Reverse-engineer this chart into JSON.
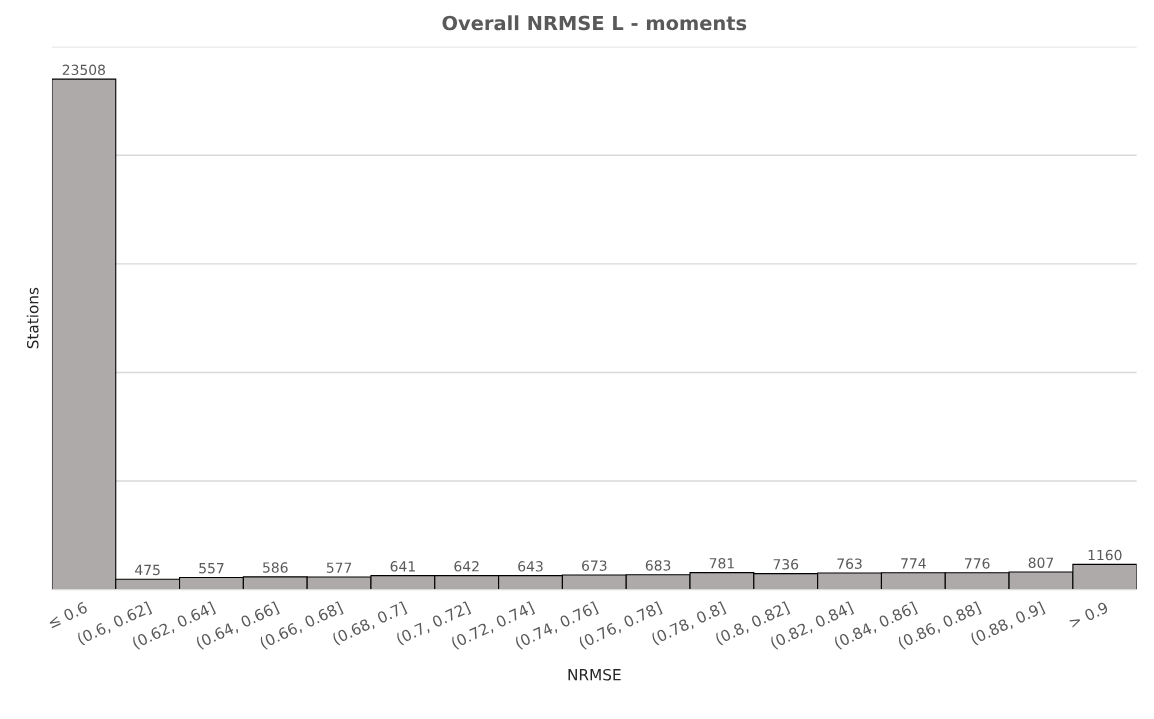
{
  "chart_data": {
    "type": "bar",
    "title": "Overall NRMSE L - moments",
    "xlabel": "NRMSE",
    "ylabel": "Stations",
    "categories": [
      "≤ 0.6",
      "(0.6, 0.62]",
      "(0.62, 0.64]",
      "(0.64, 0.66]",
      "(0.66, 0.68]",
      "(0.68, 0.7]",
      "(0.7, 0.72]",
      "(0.72, 0.74]",
      "(0.74, 0.76]",
      "(0.76, 0.78]",
      "(0.78, 0.8]",
      "(0.8, 0.82]",
      "(0.82, 0.84]",
      "(0.84, 0.86]",
      "(0.86, 0.88]",
      "(0.88, 0.9]",
      "> 0.9"
    ],
    "values": [
      23508,
      475,
      557,
      586,
      577,
      641,
      642,
      643,
      673,
      683,
      781,
      736,
      763,
      774,
      776,
      807,
      1160
    ],
    "color": "#aeaaaa",
    "data_labels": true,
    "ylim": [
      0,
      25000
    ],
    "yticks": [
      {
        "value": 0,
        "label": null
      },
      {
        "value": 5000,
        "label": null
      },
      {
        "value": 10000,
        "label": null
      },
      {
        "value": 15000,
        "label": null
      },
      {
        "value": 20000,
        "label": null
      },
      {
        "value": 25000,
        "label": null
      }
    ],
    "grid": "y",
    "tick_labels": "x",
    "legend": false
  }
}
